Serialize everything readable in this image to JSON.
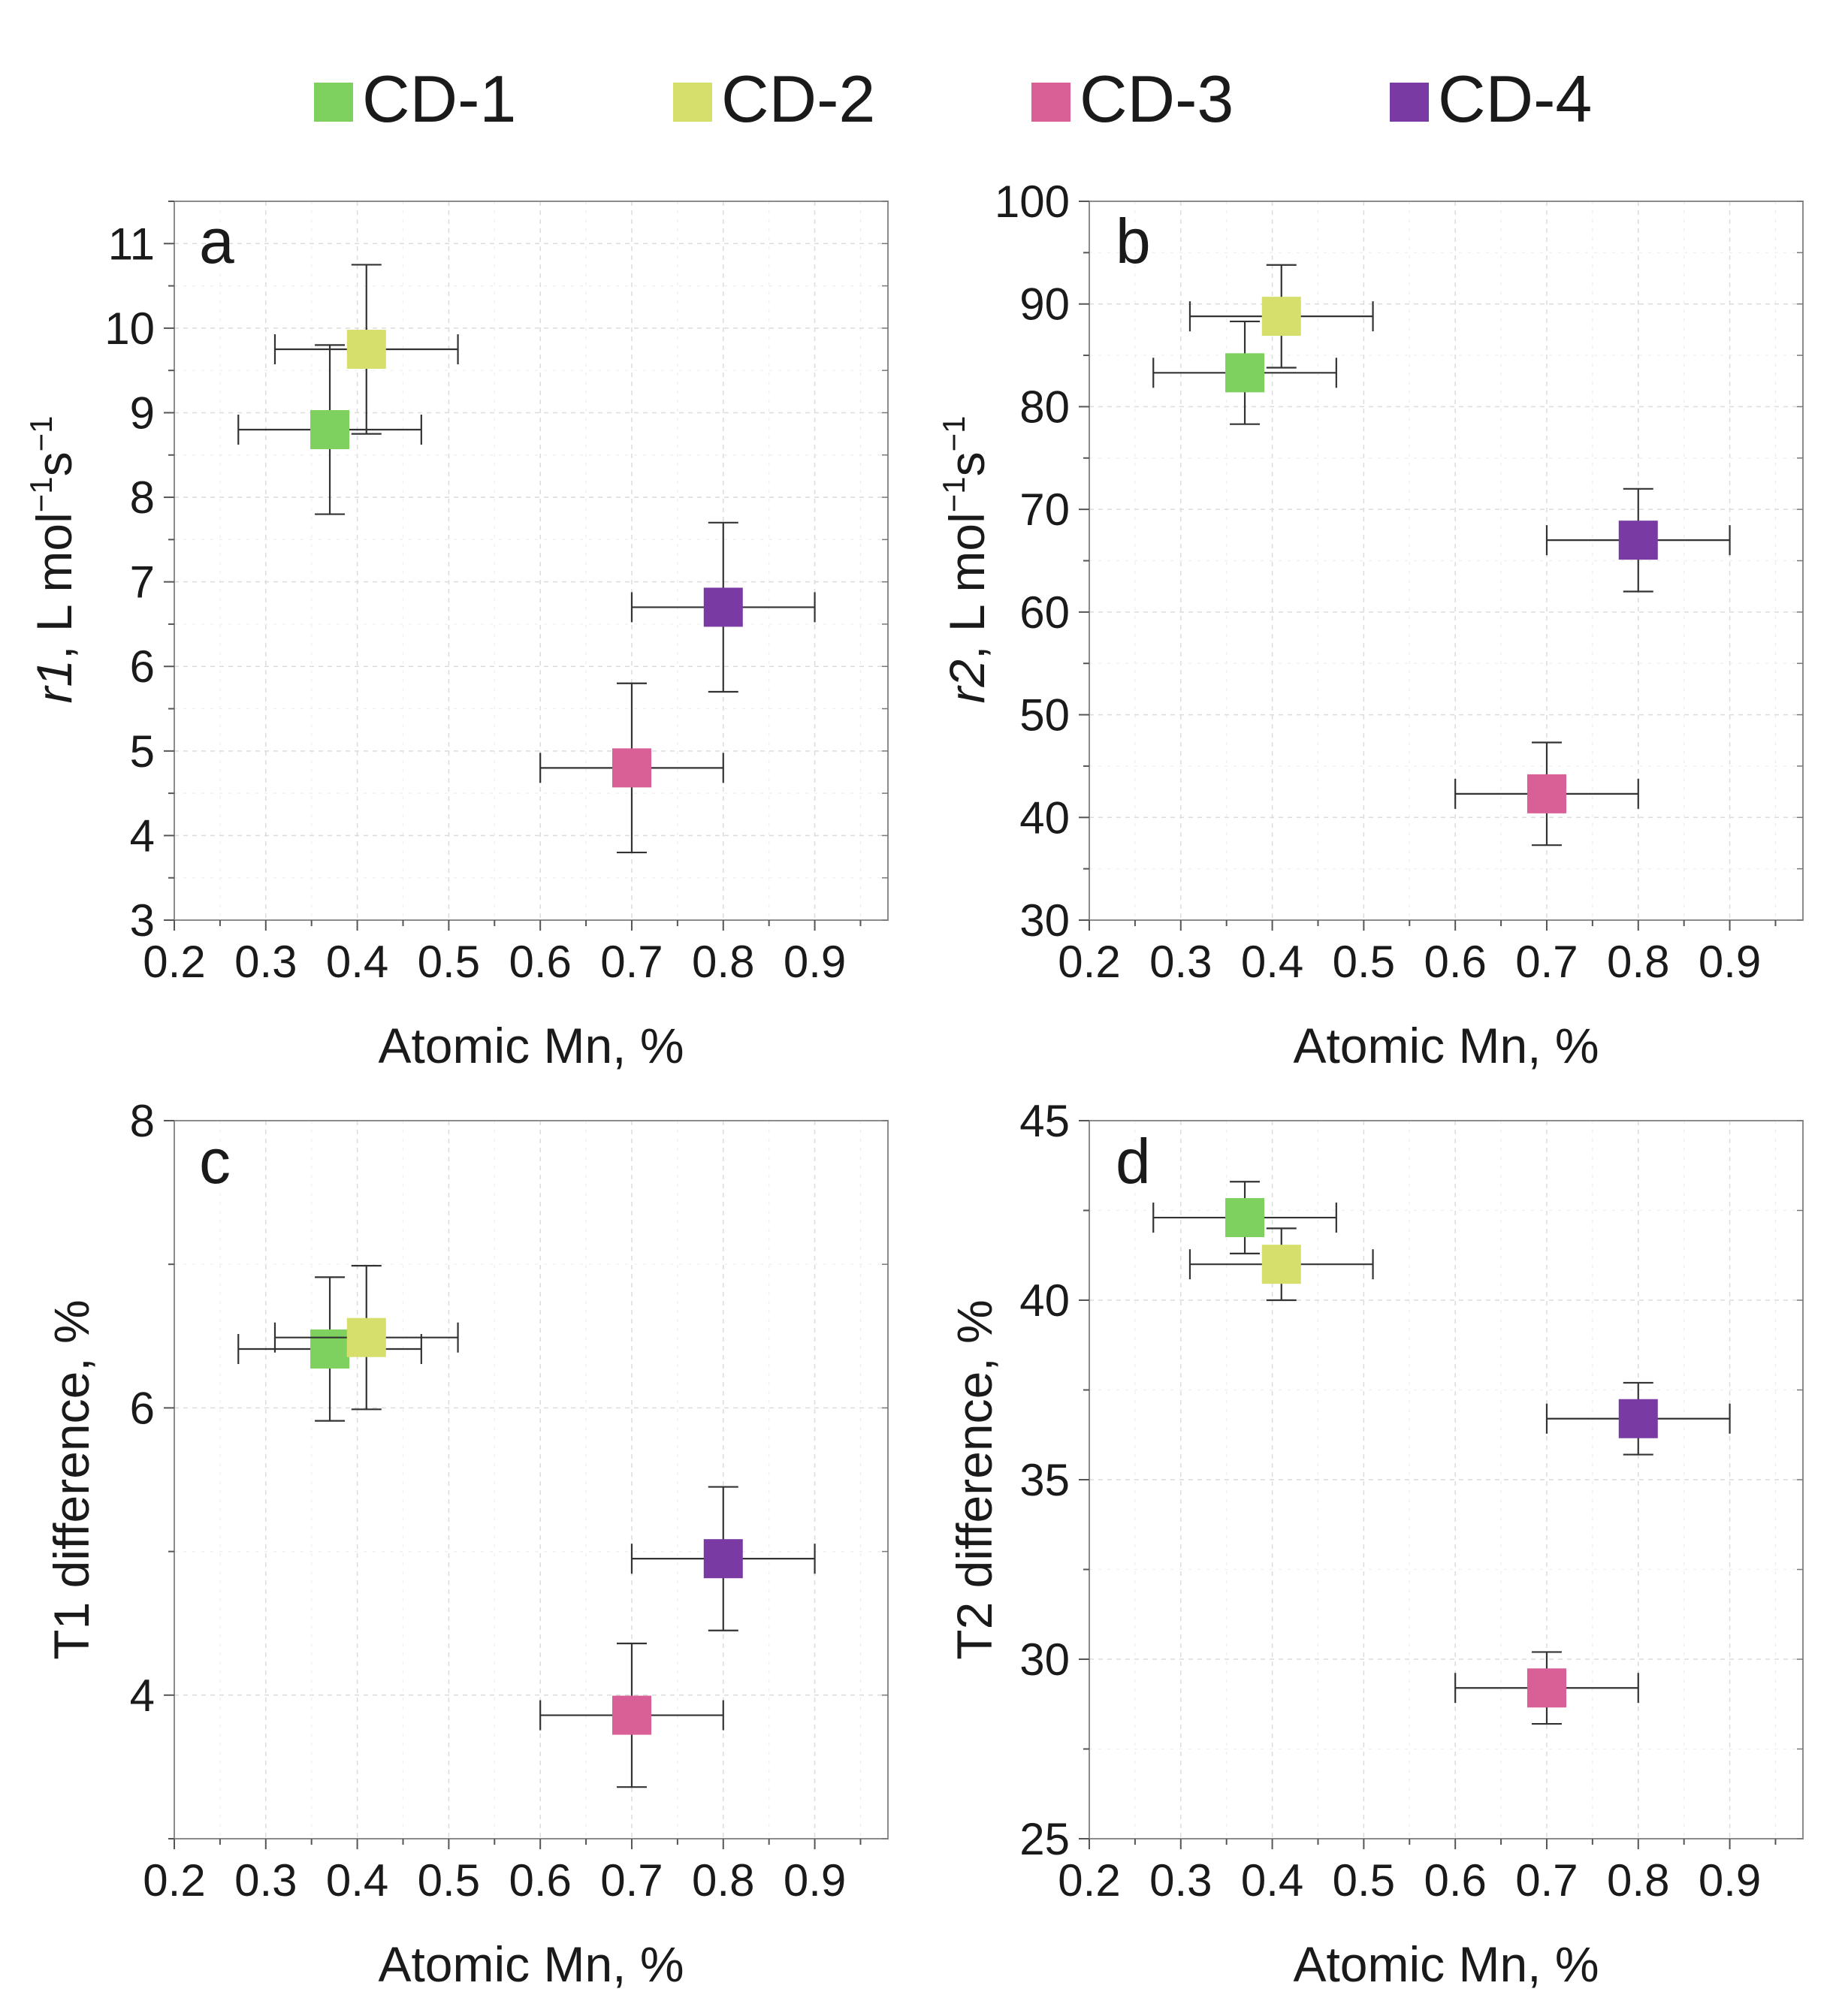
{
  "legend": {
    "items": [
      {
        "label": "CD-1",
        "color": "#7fd15f"
      },
      {
        "label": "CD-2",
        "color": "#d6df6b"
      },
      {
        "label": "CD-3",
        "color": "#d95f97"
      },
      {
        "label": "CD-4",
        "color": "#7a3aa3"
      }
    ]
  },
  "chart_data": [
    {
      "type": "scatter",
      "panel": "a",
      "xlabel": "Atomic Mn, %",
      "ylabel": {
        "italic": "r1",
        "rest": ", L mol",
        "sup1": "−1",
        "mid": "s",
        "sup2": "−1"
      },
      "xlim": [
        0.2,
        0.98
      ],
      "ylim": [
        3,
        11.5
      ],
      "xticks": [
        0.2,
        0.3,
        0.4,
        0.5,
        0.6,
        0.7,
        0.8,
        0.9
      ],
      "yticks": [
        3,
        4,
        5,
        6,
        7,
        8,
        9,
        10,
        11
      ],
      "yminor": 0.5,
      "series": [
        {
          "name": "CD-1",
          "x": 0.37,
          "y": 8.8,
          "xerr": 0.1,
          "yerr": 1.0
        },
        {
          "name": "CD-2",
          "x": 0.41,
          "y": 9.75,
          "xerr": 0.1,
          "yerr": 1.0
        },
        {
          "name": "CD-3",
          "x": 0.7,
          "y": 4.8,
          "xerr": 0.1,
          "yerr": 1.0
        },
        {
          "name": "CD-4",
          "x": 0.8,
          "y": 6.7,
          "xerr": 0.1,
          "yerr": 1.0
        }
      ]
    },
    {
      "type": "scatter",
      "panel": "b",
      "xlabel": "Atomic Mn, %",
      "ylabel": {
        "italic": "r2",
        "rest": ", L mol",
        "sup1": "−1",
        "mid": "s",
        "sup2": "−1"
      },
      "xlim": [
        0.2,
        0.98
      ],
      "ylim": [
        30,
        100
      ],
      "xticks": [
        0.2,
        0.3,
        0.4,
        0.5,
        0.6,
        0.7,
        0.8,
        0.9
      ],
      "yticks": [
        30,
        40,
        50,
        60,
        70,
        80,
        90,
        100
      ],
      "yminor": 5,
      "series": [
        {
          "name": "CD-1",
          "x": 0.37,
          "y": 83.3,
          "xerr": 0.1,
          "yerr": 5.0
        },
        {
          "name": "CD-2",
          "x": 0.41,
          "y": 88.8,
          "xerr": 0.1,
          "yerr": 5.0
        },
        {
          "name": "CD-3",
          "x": 0.7,
          "y": 42.3,
          "xerr": 0.1,
          "yerr": 5.0
        },
        {
          "name": "CD-4",
          "x": 0.8,
          "y": 67.0,
          "xerr": 0.1,
          "yerr": 5.0
        }
      ]
    },
    {
      "type": "scatter",
      "panel": "c",
      "xlabel": "Atomic Mn, %",
      "ylabel": {
        "plain": "T1 difference, %"
      },
      "xlim": [
        0.2,
        0.98
      ],
      "ylim": [
        3,
        8
      ],
      "xticks": [
        0.2,
        0.3,
        0.4,
        0.5,
        0.6,
        0.7,
        0.8,
        0.9
      ],
      "yticks": [
        4,
        6,
        8
      ],
      "yminor": 1,
      "series": [
        {
          "name": "CD-1",
          "x": 0.37,
          "y": 6.41,
          "xerr": 0.1,
          "yerr": 0.5
        },
        {
          "name": "CD-2",
          "x": 0.41,
          "y": 6.49,
          "xerr": 0.1,
          "yerr": 0.5
        },
        {
          "name": "CD-3",
          "x": 0.7,
          "y": 3.86,
          "xerr": 0.1,
          "yerr": 0.5
        },
        {
          "name": "CD-4",
          "x": 0.8,
          "y": 4.95,
          "xerr": 0.1,
          "yerr": 0.5
        }
      ]
    },
    {
      "type": "scatter",
      "panel": "d",
      "xlabel": "Atomic Mn, %",
      "ylabel": {
        "plain": "T2 difference, %"
      },
      "xlim": [
        0.2,
        0.98
      ],
      "ylim": [
        25,
        45
      ],
      "xticks": [
        0.2,
        0.3,
        0.4,
        0.5,
        0.6,
        0.7,
        0.8,
        0.9
      ],
      "yticks": [
        25,
        30,
        35,
        40,
        45
      ],
      "yminor": 2.5,
      "series": [
        {
          "name": "CD-1",
          "x": 0.37,
          "y": 42.3,
          "xerr": 0.1,
          "yerr": 1.0
        },
        {
          "name": "CD-2",
          "x": 0.41,
          "y": 41.0,
          "xerr": 0.1,
          "yerr": 1.0
        },
        {
          "name": "CD-3",
          "x": 0.7,
          "y": 29.2,
          "xerr": 0.1,
          "yerr": 1.0
        },
        {
          "name": "CD-4",
          "x": 0.8,
          "y": 36.7,
          "xerr": 0.1,
          "yerr": 1.0
        }
      ]
    }
  ]
}
